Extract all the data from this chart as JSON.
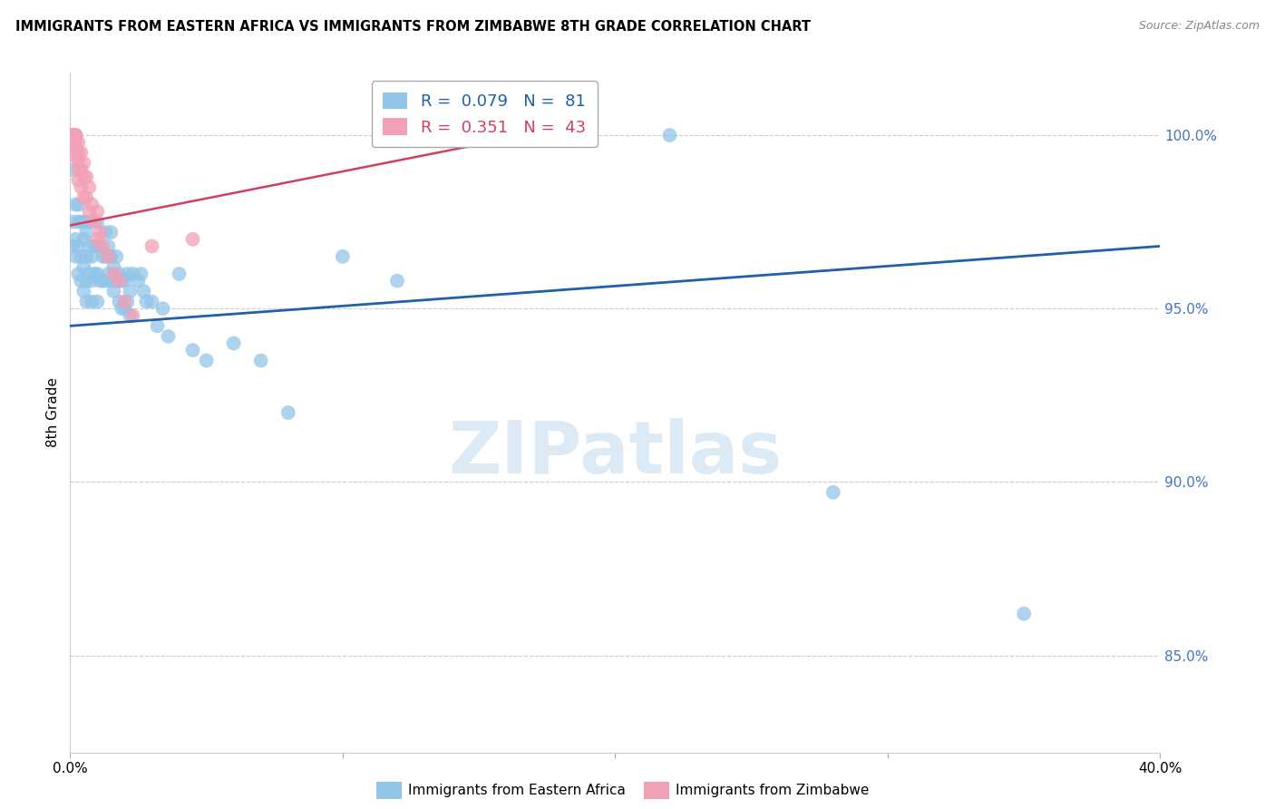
{
  "title": "IMMIGRANTS FROM EASTERN AFRICA VS IMMIGRANTS FROM ZIMBABWE 8TH GRADE CORRELATION CHART",
  "source": "Source: ZipAtlas.com",
  "ylabel": "8th Grade",
  "y_tick_labels": [
    "100.0%",
    "95.0%",
    "90.0%",
    "85.0%"
  ],
  "y_tick_values": [
    1.0,
    0.95,
    0.9,
    0.85
  ],
  "x_range": [
    0.0,
    0.4
  ],
  "y_range": [
    0.822,
    1.018
  ],
  "legend_blue_label": "Immigrants from Eastern Africa",
  "legend_pink_label": "Immigrants from Zimbabwe",
  "R_blue": 0.079,
  "N_blue": 81,
  "R_pink": 0.351,
  "N_pink": 43,
  "blue_color": "#92C5E8",
  "pink_color": "#F2A0B5",
  "trendline_blue_color": "#2060A8",
  "trendline_pink_color": "#D04060",
  "blue_trendline_x": [
    0.0,
    0.4
  ],
  "blue_trendline_y": [
    0.945,
    0.968
  ],
  "pink_trendline_x": [
    0.0,
    0.18
  ],
  "pink_trendline_y": [
    0.974,
    1.002
  ],
  "blue_scatter_x": [
    0.001,
    0.001,
    0.001,
    0.002,
    0.002,
    0.002,
    0.003,
    0.003,
    0.003,
    0.003,
    0.004,
    0.004,
    0.004,
    0.005,
    0.005,
    0.005,
    0.005,
    0.006,
    0.006,
    0.006,
    0.006,
    0.007,
    0.007,
    0.007,
    0.008,
    0.008,
    0.008,
    0.009,
    0.009,
    0.01,
    0.01,
    0.01,
    0.01,
    0.011,
    0.011,
    0.012,
    0.012,
    0.013,
    0.013,
    0.013,
    0.014,
    0.014,
    0.015,
    0.015,
    0.015,
    0.016,
    0.016,
    0.017,
    0.017,
    0.018,
    0.018,
    0.019,
    0.019,
    0.02,
    0.02,
    0.021,
    0.021,
    0.022,
    0.022,
    0.023,
    0.025,
    0.026,
    0.027,
    0.028,
    0.03,
    0.032,
    0.034,
    0.036,
    0.04,
    0.045,
    0.05,
    0.06,
    0.07,
    0.08,
    0.1,
    0.12,
    0.15,
    0.18,
    0.22,
    0.28,
    0.35
  ],
  "blue_scatter_y": [
    0.99,
    0.975,
    0.968,
    0.98,
    0.97,
    0.965,
    0.98,
    0.975,
    0.968,
    0.96,
    0.975,
    0.965,
    0.958,
    0.975,
    0.97,
    0.962,
    0.955,
    0.972,
    0.965,
    0.958,
    0.952,
    0.975,
    0.968,
    0.96,
    0.965,
    0.958,
    0.952,
    0.968,
    0.96,
    0.975,
    0.968,
    0.96,
    0.952,
    0.968,
    0.958,
    0.965,
    0.958,
    0.972,
    0.965,
    0.958,
    0.968,
    0.96,
    0.972,
    0.965,
    0.958,
    0.962,
    0.955,
    0.965,
    0.958,
    0.96,
    0.952,
    0.958,
    0.95,
    0.958,
    0.95,
    0.96,
    0.952,
    0.955,
    0.948,
    0.96,
    0.958,
    0.96,
    0.955,
    0.952,
    0.952,
    0.945,
    0.95,
    0.942,
    0.96,
    0.938,
    0.935,
    0.94,
    0.935,
    0.92,
    0.965,
    0.958,
    1.0,
    1.0,
    1.0,
    0.897,
    0.862
  ],
  "pink_scatter_x": [
    0.001,
    0.001,
    0.001,
    0.001,
    0.001,
    0.001,
    0.001,
    0.001,
    0.002,
    0.002,
    0.002,
    0.002,
    0.002,
    0.002,
    0.002,
    0.003,
    0.003,
    0.003,
    0.003,
    0.003,
    0.004,
    0.004,
    0.004,
    0.005,
    0.005,
    0.005,
    0.006,
    0.006,
    0.007,
    0.007,
    0.008,
    0.009,
    0.01,
    0.01,
    0.011,
    0.012,
    0.014,
    0.016,
    0.018,
    0.02,
    0.023,
    0.03,
    0.045
  ],
  "pink_scatter_y": [
    1.0,
    1.0,
    1.0,
    1.0,
    1.0,
    1.0,
    1.0,
    0.998,
    1.0,
    1.0,
    1.0,
    1.0,
    0.998,
    0.996,
    0.994,
    0.998,
    0.995,
    0.993,
    0.99,
    0.987,
    0.995,
    0.99,
    0.985,
    0.992,
    0.988,
    0.982,
    0.988,
    0.982,
    0.985,
    0.978,
    0.98,
    0.975,
    0.978,
    0.97,
    0.972,
    0.968,
    0.965,
    0.96,
    0.958,
    0.952,
    0.948,
    0.968,
    0.97
  ]
}
